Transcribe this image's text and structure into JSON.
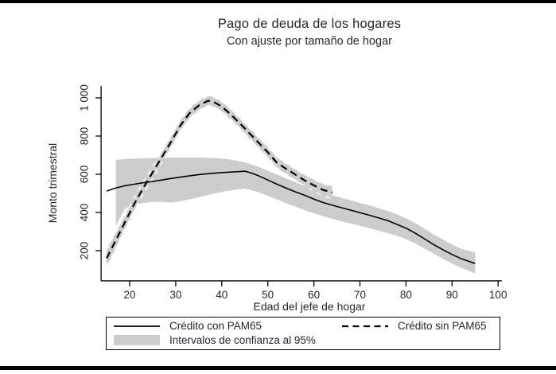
{
  "page": {
    "title": "Pago de deuda de los hogares",
    "subtitle": "Con ajuste por tamaño de hogar"
  },
  "colors": {
    "background": "#ffffff",
    "text": "#26262d",
    "line": "#000000",
    "band": "#cdcdcd",
    "rule": "#000000"
  },
  "legend": {
    "items": [
      {
        "label": "Crédito con PAM65",
        "swatch": "solid-line"
      },
      {
        "label": "Crédito sin PAM65",
        "swatch": "dashed-line"
      },
      {
        "label": "Intervalos de confianza al 95%",
        "swatch": "band"
      }
    ]
  },
  "chart_data": {
    "type": "line",
    "title": "Pago de deuda de los hogares",
    "subtitle": "Con ajuste por tamaño de hogar",
    "xlabel": "Edad del jefe de hogar",
    "ylabel": "Monto trimestral",
    "xlim": [
      13.8,
      100.8
    ],
    "ylim": [
      42,
      1062
    ],
    "grid": false,
    "legend_position": "bottom",
    "x_ticks": [
      20,
      30,
      40,
      50,
      60,
      70,
      80,
      90,
      100
    ],
    "y_ticks": [
      {
        "value": 200,
        "label": "200"
      },
      {
        "value": 400,
        "label": "400"
      },
      {
        "value": 600,
        "label": "600"
      },
      {
        "value": 800,
        "label": "800"
      },
      {
        "value": 1000,
        "label": "1 000"
      }
    ],
    "ci_legend_label": "Intervalos de confianza al 95%",
    "series": [
      {
        "name": "Crédito con PAM65",
        "style": "solid",
        "x": [
          15,
          17,
          19,
          21,
          23,
          25,
          27,
          29,
          31,
          33,
          35,
          37,
          39,
          41,
          43,
          45,
          46,
          48,
          50,
          52,
          54,
          56,
          58,
          60,
          62,
          64,
          66,
          68,
          70,
          72,
          74,
          76,
          78,
          80,
          82,
          84,
          86,
          88,
          90,
          92,
          95
        ],
        "y": [
          512,
          528,
          540,
          548,
          556,
          562,
          570,
          578,
          585,
          592,
          598,
          603,
          607,
          610,
          613,
          616,
          610,
          592,
          570,
          548,
          527,
          508,
          490,
          470,
          452,
          438,
          425,
          412,
          399,
          386,
          372,
          358,
          338,
          318,
          292,
          262,
          232,
          205,
          180,
          158,
          133
        ],
        "ci": {
          "x": [
            17,
            19,
            21,
            23,
            25,
            27,
            29,
            31,
            33,
            35,
            37,
            39,
            41,
            43,
            45,
            46,
            48,
            50,
            52,
            54,
            56,
            58,
            60,
            62,
            64,
            66,
            68,
            70,
            72,
            74,
            76,
            78,
            80,
            82,
            84,
            86,
            88,
            90,
            92,
            95
          ],
          "upper": [
            675,
            680,
            682,
            684,
            685,
            686,
            688,
            688,
            688,
            688,
            686,
            684,
            680,
            672,
            662,
            655,
            638,
            618,
            598,
            578,
            558,
            540,
            522,
            505,
            490,
            477,
            464,
            450,
            437,
            423,
            408,
            390,
            370,
            345,
            315,
            285,
            258,
            232,
            210,
            190
          ],
          "lower": [
            330,
            420,
            440,
            450,
            455,
            455,
            452,
            458,
            468,
            480,
            492,
            502,
            512,
            520,
            525,
            520,
            505,
            488,
            468,
            448,
            430,
            412,
            396,
            380,
            366,
            354,
            342,
            330,
            318,
            305,
            292,
            278,
            260,
            238,
            212,
            185,
            158,
            132,
            110,
            80
          ]
        }
      },
      {
        "name": "Crédito sin PAM65",
        "style": "dashed",
        "x": [
          15,
          17,
          19,
          21,
          23,
          25,
          27,
          29,
          31,
          33,
          35,
          37,
          38,
          40,
          42,
          44,
          46,
          48,
          50,
          52,
          54,
          56,
          58,
          60,
          62,
          64
        ],
        "y": [
          160,
          255,
          350,
          445,
          530,
          610,
          690,
          770,
          855,
          920,
          960,
          985,
          982,
          955,
          912,
          865,
          815,
          765,
          715,
          660,
          628,
          598,
          568,
          542,
          518,
          505
        ],
        "ci": {
          "x": [
            15,
            17,
            19,
            21,
            23,
            25,
            27,
            29,
            31,
            33,
            35,
            37,
            38,
            40,
            42,
            44,
            46,
            48,
            50,
            52,
            54,
            56,
            58,
            60,
            62,
            64
          ],
          "upper": [
            205,
            295,
            386,
            479,
            562,
            640,
            718,
            798,
            882,
            946,
            985,
            1010,
            1007,
            980,
            938,
            891,
            842,
            792,
            742,
            688,
            656,
            626,
            597,
            572,
            549,
            538
          ],
          "lower": [
            115,
            215,
            314,
            411,
            498,
            580,
            662,
            742,
            828,
            894,
            935,
            960,
            957,
            930,
            886,
            839,
            788,
            738,
            688,
            632,
            600,
            570,
            539,
            512,
            487,
            472
          ]
        }
      }
    ]
  }
}
